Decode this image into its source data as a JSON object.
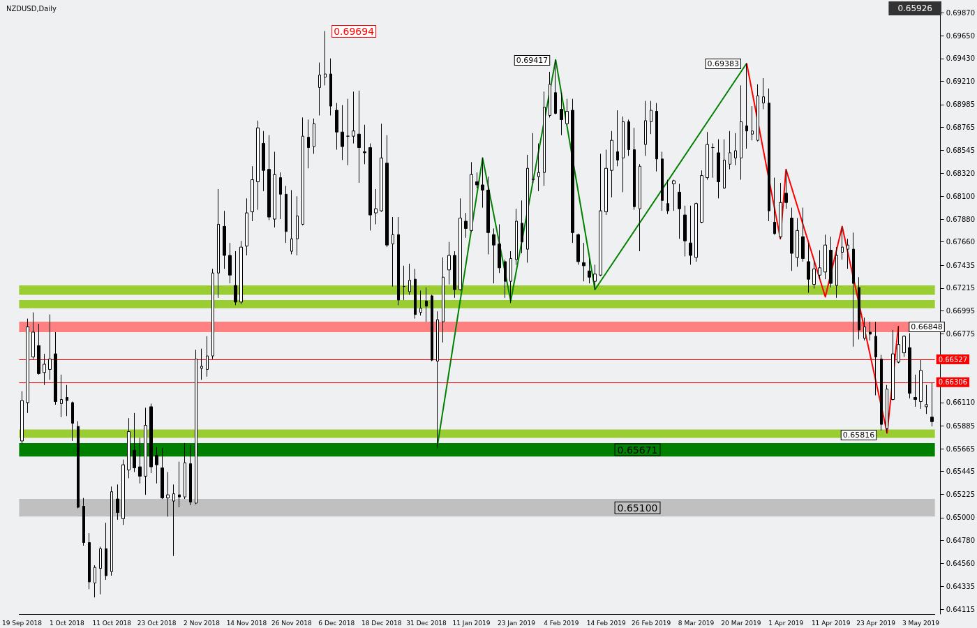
{
  "chart_data": {
    "type": "candlestick",
    "title": "NZDUSD,Daily",
    "categories": [
      "19 Sep 2018",
      null,
      null,
      null,
      null,
      null,
      null,
      null,
      "1 Oct 2018",
      null,
      null,
      null,
      null,
      null,
      null,
      null,
      "11 Oct 2018",
      null,
      null,
      null,
      null,
      null,
      null,
      null,
      "23 Oct 2018",
      null,
      null,
      null,
      null,
      null,
      null,
      null,
      "2 Nov 2018",
      null,
      null,
      null,
      null,
      null,
      null,
      null,
      "14 Nov 2018",
      null,
      null,
      null,
      null,
      null,
      null,
      null,
      "26 Nov 2018",
      null,
      null,
      null,
      null,
      null,
      null,
      null,
      "6 Dec 2018",
      null,
      null,
      null,
      null,
      null,
      null,
      null,
      "18 Dec 2018",
      null,
      null,
      null,
      null,
      null,
      null,
      null,
      "31 Dec 2018",
      null,
      null,
      null,
      null,
      null,
      null,
      null,
      "11 Jan 2019",
      null,
      null,
      null,
      null,
      null,
      null,
      null,
      "23 Jan 2019",
      null,
      null,
      null,
      null,
      null,
      null,
      null,
      "4 Feb 2019",
      null,
      null,
      null,
      null,
      null,
      null,
      null,
      "14 Feb 2019",
      null,
      null,
      null,
      null,
      null,
      null,
      null,
      "26 Feb 2019",
      null,
      null,
      null,
      null,
      null,
      null,
      null,
      "8 Mar 2019",
      null,
      null,
      null,
      null,
      null,
      null,
      null,
      "20 Mar 2019",
      null,
      null,
      null,
      null,
      null,
      null,
      null,
      "1 Apr 2019",
      null,
      null,
      null,
      null,
      null,
      null,
      null,
      "11 Apr 2019",
      null,
      null,
      null,
      null,
      null,
      null,
      null,
      "23 Apr 2019",
      null,
      null,
      null,
      null,
      null,
      null,
      null,
      "3 May 2019",
      null,
      null
    ],
    "ohlc": [
      [
        0.6574,
        0.6622,
        0.6571,
        0.6613
      ],
      [
        0.6611,
        0.6692,
        0.6601,
        0.6684
      ],
      [
        0.6655,
        0.6698,
        0.6653,
        0.6679
      ],
      [
        0.6666,
        0.6687,
        0.6638,
        0.6639
      ],
      [
        0.664,
        0.6658,
        0.6628,
        0.6648
      ],
      [
        0.6643,
        0.6696,
        0.6633,
        0.6653
      ],
      [
        0.6658,
        0.6679,
        0.6609,
        0.6612
      ],
      [
        0.661,
        0.6638,
        0.6597,
        0.6614
      ],
      [
        0.6616,
        0.6628,
        0.6598,
        0.6613
      ],
      [
        0.6611,
        0.6612,
        0.6574,
        0.6591
      ],
      [
        0.6588,
        0.6593,
        0.6509,
        0.651
      ],
      [
        0.6511,
        0.6519,
        0.6473,
        0.6476
      ],
      [
        0.6476,
        0.6485,
        0.6431,
        0.6438
      ],
      [
        0.6437,
        0.6454,
        0.6423,
        0.6452
      ],
      [
        0.6451,
        0.6472,
        0.6426,
        0.647
      ],
      [
        0.647,
        0.6495,
        0.644,
        0.6444
      ],
      [
        0.6448,
        0.653,
        0.6444,
        0.6525
      ],
      [
        0.6518,
        0.6532,
        0.6498,
        0.6505
      ],
      [
        0.6499,
        0.6556,
        0.6493,
        0.6551
      ],
      [
        0.6546,
        0.6596,
        0.6538,
        0.6583
      ],
      [
        0.6565,
        0.6601,
        0.6544,
        0.6548
      ],
      [
        0.6549,
        0.6577,
        0.6533,
        0.654
      ],
      [
        0.654,
        0.6606,
        0.6522,
        0.6589
      ],
      [
        0.6607,
        0.661,
        0.6543,
        0.6549
      ],
      [
        0.656,
        0.6568,
        0.6533,
        0.6551
      ],
      [
        0.6548,
        0.6567,
        0.6518,
        0.6519
      ],
      [
        0.6519,
        0.6544,
        0.6501,
        0.6522
      ],
      [
        0.6516,
        0.6532,
        0.6463,
        0.6523
      ],
      [
        0.6522,
        0.6554,
        0.651,
        0.652
      ],
      [
        0.652,
        0.6572,
        0.6518,
        0.6553
      ],
      [
        0.6552,
        0.657,
        0.6512,
        0.6515
      ],
      [
        0.6514,
        0.6662,
        0.6513,
        0.6653
      ],
      [
        0.6644,
        0.6663,
        0.6633,
        0.6646
      ],
      [
        0.6643,
        0.6675,
        0.6636,
        0.6656
      ],
      [
        0.6656,
        0.674,
        0.6653,
        0.6736
      ],
      [
        0.6736,
        0.6817,
        0.6712,
        0.6783
      ],
      [
        0.6781,
        0.6796,
        0.674,
        0.6753
      ],
      [
        0.6753,
        0.6765,
        0.6726,
        0.6734
      ],
      [
        0.6724,
        0.6757,
        0.6705,
        0.6708
      ],
      [
        0.6708,
        0.6767,
        0.6706,
        0.6761
      ],
      [
        0.6762,
        0.6808,
        0.6753,
        0.6794
      ],
      [
        0.6795,
        0.6839,
        0.6786,
        0.6826
      ],
      [
        0.6824,
        0.6883,
        0.6797,
        0.6876
      ],
      [
        0.6861,
        0.6873,
        0.6815,
        0.6835
      ],
      [
        0.6836,
        0.6869,
        0.6787,
        0.679
      ],
      [
        0.6788,
        0.6853,
        0.678,
        0.6831
      ],
      [
        0.6828,
        0.6833,
        0.6788,
        0.6812
      ],
      [
        0.6812,
        0.682,
        0.6765,
        0.6776
      ],
      [
        0.6757,
        0.6816,
        0.6754,
        0.6769
      ],
      [
        0.6769,
        0.681,
        0.6753,
        0.6791
      ],
      [
        0.6783,
        0.6886,
        0.6782,
        0.6868
      ],
      [
        0.6867,
        0.6884,
        0.6837,
        0.6857
      ],
      [
        0.6858,
        0.6885,
        0.6851,
        0.688
      ],
      [
        0.6915,
        0.6939,
        0.6888,
        0.6927
      ],
      [
        0.6925,
        0.69694,
        0.6917,
        0.6928
      ],
      [
        0.6928,
        0.6943,
        0.6888,
        0.6897
      ],
      [
        0.6893,
        0.69,
        0.6855,
        0.6872
      ],
      [
        0.6872,
        0.6898,
        0.6845,
        0.6858
      ],
      [
        0.6868,
        0.6904,
        0.684,
        0.6868
      ],
      [
        0.6868,
        0.6911,
        0.6861,
        0.6873
      ],
      [
        0.687,
        0.6912,
        0.6823,
        0.6857
      ],
      [
        0.6853,
        0.6879,
        0.6841,
        0.6852
      ],
      [
        0.6857,
        0.6861,
        0.6777,
        0.6792
      ],
      [
        0.6794,
        0.6817,
        0.6783,
        0.6798
      ],
      [
        0.6796,
        0.688,
        0.6795,
        0.6847
      ],
      [
        0.6842,
        0.6869,
        0.6761,
        0.6763
      ],
      [
        0.6764,
        0.679,
        0.6723,
        0.6773
      ],
      [
        0.6773,
        0.679,
        0.6705,
        0.671
      ],
      [
        0.6723,
        0.6743,
        0.671,
        0.6723
      ],
      [
        0.6718,
        0.6745,
        0.6715,
        0.6729
      ],
      [
        0.673,
        0.674,
        0.6692,
        0.6696
      ],
      [
        0.6698,
        0.6719,
        0.6695,
        0.6702
      ],
      [
        0.6709,
        0.6722,
        0.6689,
        0.6704
      ],
      [
        0.6714,
        0.6715,
        0.6651,
        0.6652
      ],
      [
        0.6651,
        0.6699,
        0.6567,
        0.6691
      ],
      [
        0.6689,
        0.6751,
        0.6669,
        0.6732
      ],
      [
        0.6739,
        0.6766,
        0.6725,
        0.6753
      ],
      [
        0.6753,
        0.6757,
        0.6712,
        0.672
      ],
      [
        0.672,
        0.6808,
        0.6719,
        0.6789
      ],
      [
        0.6786,
        0.6794,
        0.677,
        0.6779
      ],
      [
        0.6777,
        0.6843,
        0.6776,
        0.6831
      ],
      [
        0.6824,
        0.6833,
        0.6818,
        0.6821
      ],
      [
        0.6821,
        0.6847,
        0.6799,
        0.6816
      ],
      [
        0.6816,
        0.6829,
        0.6754,
        0.6775
      ],
      [
        0.6773,
        0.6779,
        0.6726,
        0.6763
      ],
      [
        0.6764,
        0.6783,
        0.6736,
        0.6741
      ],
      [
        0.6747,
        0.6749,
        0.6712,
        0.6728
      ],
      [
        0.6728,
        0.6757,
        0.6707,
        0.675
      ],
      [
        0.6749,
        0.6798,
        0.6744,
        0.6786
      ],
      [
        0.6784,
        0.6806,
        0.6755,
        0.6766
      ],
      [
        0.6759,
        0.685,
        0.6746,
        0.6837
      ],
      [
        0.6826,
        0.6871,
        0.6823,
        0.6827
      ],
      [
        0.6829,
        0.6861,
        0.6815,
        0.6833
      ],
      [
        0.6833,
        0.6911,
        0.682,
        0.6896
      ],
      [
        0.6888,
        0.693,
        0.6886,
        0.6918
      ],
      [
        0.691,
        0.69417,
        0.6889,
        0.689
      ],
      [
        0.6894,
        0.691,
        0.6869,
        0.6884
      ],
      [
        0.688,
        0.6904,
        0.6879,
        0.6892
      ],
      [
        0.6893,
        0.6904,
        0.6765,
        0.6775
      ],
      [
        0.6773,
        0.6774,
        0.6744,
        0.6747
      ],
      [
        0.6746,
        0.6765,
        0.6728,
        0.6743
      ],
      [
        0.6738,
        0.675,
        0.6726,
        0.6732
      ],
      [
        0.6728,
        0.6744,
        0.672,
        0.6735
      ],
      [
        0.6734,
        0.6851,
        0.6733,
        0.6796
      ],
      [
        0.6795,
        0.6855,
        0.6792,
        0.6837
      ],
      [
        0.6835,
        0.6873,
        0.6809,
        0.6864
      ],
      [
        0.6853,
        0.6893,
        0.6839,
        0.6845
      ],
      [
        0.6847,
        0.6887,
        0.6814,
        0.6882
      ],
      [
        0.6882,
        0.6884,
        0.6849,
        0.6855
      ],
      [
        0.6855,
        0.6876,
        0.6797,
        0.68
      ],
      [
        0.6798,
        0.6841,
        0.6757,
        0.6839
      ],
      [
        0.686,
        0.6902,
        0.6849,
        0.6883
      ],
      [
        0.6882,
        0.6902,
        0.687,
        0.6893
      ],
      [
        0.6892,
        0.69,
        0.6834,
        0.6846
      ],
      [
        0.6846,
        0.6853,
        0.6796,
        0.6806
      ],
      [
        0.6803,
        0.6826,
        0.6793,
        0.6796
      ],
      [
        0.6822,
        0.6826,
        0.6796,
        0.6825
      ],
      [
        0.6814,
        0.6822,
        0.6769,
        0.6798
      ],
      [
        0.6792,
        0.6801,
        0.6752,
        0.6767
      ],
      [
        0.6765,
        0.6801,
        0.6744,
        0.6753
      ],
      [
        0.6751,
        0.6804,
        0.6747,
        0.6803
      ],
      [
        0.6785,
        0.6835,
        0.6784,
        0.683
      ],
      [
        0.6828,
        0.6872,
        0.6826,
        0.686
      ],
      [
        0.6857,
        0.6861,
        0.6828,
        0.6857
      ],
      [
        0.6852,
        0.6865,
        0.6808,
        0.6824
      ],
      [
        0.6818,
        0.6865,
        0.6817,
        0.6845
      ],
      [
        0.6841,
        0.6873,
        0.6836,
        0.6852
      ],
      [
        0.6847,
        0.6871,
        0.684,
        0.6854
      ],
      [
        0.6847,
        0.6917,
        0.6826,
        0.6882
      ],
      [
        0.6878,
        0.69383,
        0.6856,
        0.6873
      ],
      [
        0.687,
        0.6897,
        0.6864,
        0.6873
      ],
      [
        0.6864,
        0.6918,
        0.6863,
        0.6907
      ],
      [
        0.69,
        0.6924,
        0.6894,
        0.6906
      ],
      [
        0.69,
        0.6914,
        0.6786,
        0.6796
      ],
      [
        0.6785,
        0.6828,
        0.6773,
        0.6774
      ],
      [
        0.6771,
        0.6823,
        0.6769,
        0.6804
      ],
      [
        0.6813,
        0.6836,
        0.6798,
        0.6804
      ],
      [
        0.6789,
        0.6799,
        0.6738,
        0.6755
      ],
      [
        0.6751,
        0.6789,
        0.6742,
        0.6777
      ],
      [
        0.6771,
        0.6799,
        0.6747,
        0.675
      ],
      [
        0.6747,
        0.6765,
        0.6717,
        0.673
      ],
      [
        0.6725,
        0.6748,
        0.6721,
        0.674
      ],
      [
        0.6734,
        0.6758,
        0.673,
        0.6741
      ],
      [
        0.6737,
        0.6773,
        0.673,
        0.6763
      ],
      [
        0.6758,
        0.6771,
        0.6722,
        0.6726
      ],
      [
        0.6724,
        0.6761,
        0.6712,
        0.6753
      ],
      [
        0.6756,
        0.6781,
        0.6749,
        0.6761
      ],
      [
        0.6759,
        0.6769,
        0.674,
        0.6763
      ],
      [
        0.6759,
        0.6775,
        0.6665,
        0.6726
      ],
      [
        0.6722,
        0.6732,
        0.6672,
        0.6681
      ],
      [
        0.6673,
        0.6693,
        0.6671,
        0.6684
      ],
      [
        0.6679,
        0.6689,
        0.6671,
        0.6677
      ],
      [
        0.6675,
        0.6689,
        0.6618,
        0.6655
      ],
      [
        0.6653,
        0.6657,
        0.6584,
        0.659
      ],
      [
        0.6586,
        0.6628,
        0.65816,
        0.6624
      ],
      [
        0.6614,
        0.6681,
        0.6613,
        0.6658
      ],
      [
        0.665,
        0.66848,
        0.6649,
        0.6667
      ],
      [
        0.6659,
        0.6676,
        0.6655,
        0.6675
      ],
      [
        0.6664,
        0.6678,
        0.6615,
        0.662
      ],
      [
        0.6616,
        0.6638,
        0.6607,
        0.6614
      ],
      [
        0.6612,
        0.6652,
        0.6605,
        0.6642
      ],
      [
        0.6607,
        0.6628,
        0.66,
        0.6609
      ],
      [
        0.6597,
        0.663,
        0.6588,
        0.65926
      ]
    ],
    "series": [
      {
        "type": "line",
        "color": "#008000",
        "values": [
          null,
          null,
          null,
          null,
          null,
          null,
          null,
          null,
          null,
          null,
          null,
          null,
          null,
          null,
          null,
          null,
          null,
          null,
          null,
          null,
          null,
          null,
          null,
          null,
          null,
          null,
          null,
          null,
          null,
          null,
          null,
          null,
          null,
          null,
          null,
          null,
          null,
          null,
          null,
          null,
          null,
          null,
          null,
          null,
          null,
          null,
          null,
          null,
          null,
          null,
          null,
          null,
          null,
          null,
          null,
          null,
          null,
          null,
          null,
          null,
          null,
          null,
          null,
          null,
          null,
          null,
          null,
          null,
          null,
          null,
          null,
          null,
          null,
          null,
          0.6571,
          null,
          null,
          null,
          null,
          null,
          null,
          null,
          0.6847,
          null,
          null,
          null,
          null,
          0.6709,
          null,
          null,
          null,
          null,
          null,
          null,
          null,
          0.69417,
          null,
          null,
          null,
          null,
          null,
          null,
          0.672,
          null,
          null,
          null,
          null,
          null,
          null,
          null,
          null,
          null,
          null,
          null,
          null,
          null,
          null,
          null,
          null,
          null,
          null,
          null,
          null,
          null,
          null,
          null,
          null,
          null,
          null,
          0.69383,
          null,
          null,
          null,
          null,
          null,
          null,
          null,
          null,
          null,
          null,
          null,
          null,
          null,
          null,
          null,
          null,
          null,
          null,
          null,
          null,
          null,
          null,
          null,
          null,
          null,
          null,
          null,
          null,
          null,
          null,
          null,
          null,
          null
        ]
      },
      {
        "type": "line",
        "color": "#ff0000",
        "values": [
          null,
          null,
          null,
          null,
          null,
          null,
          null,
          null,
          null,
          null,
          null,
          null,
          null,
          null,
          null,
          null,
          null,
          null,
          null,
          null,
          null,
          null,
          null,
          null,
          null,
          null,
          null,
          null,
          null,
          null,
          null,
          null,
          null,
          null,
          null,
          null,
          null,
          null,
          null,
          null,
          null,
          null,
          null,
          null,
          null,
          null,
          null,
          null,
          null,
          null,
          null,
          null,
          null,
          null,
          null,
          null,
          null,
          null,
          null,
          null,
          null,
          null,
          null,
          null,
          null,
          null,
          null,
          null,
          null,
          null,
          null,
          null,
          null,
          null,
          null,
          null,
          null,
          null,
          null,
          null,
          null,
          null,
          null,
          null,
          null,
          null,
          null,
          null,
          null,
          null,
          null,
          null,
          null,
          null,
          null,
          null,
          null,
          null,
          null,
          null,
          null,
          null,
          null,
          null,
          null,
          null,
          null,
          null,
          null,
          null,
          null,
          null,
          null,
          null,
          null,
          null,
          null,
          null,
          null,
          null,
          null,
          null,
          null,
          null,
          null,
          null,
          null,
          null,
          null,
          0.69383,
          null,
          null,
          null,
          null,
          null,
          0.6769,
          0.6836,
          null,
          null,
          null,
          null,
          null,
          null,
          0.6713,
          null,
          null,
          0.6781,
          null,
          null,
          null,
          null,
          null,
          null,
          null,
          0.65816,
          null,
          0.66848,
          null,
          null,
          null,
          null,
          null,
          null
        ]
      }
    ],
    "ylim": [
      0.6407,
      0.6994
    ],
    "yticks": [
      0.64115,
      0.64335,
      {
        "value": 0.6456,
        "label": "0.64560"
      },
      {
        "value": 0.6478,
        "label": "0.64780"
      },
      {
        "value": 0.65,
        "label": "0.65000"
      },
      0.65225,
      0.65445,
      0.65665,
      0.65885,
      {
        "value": 0.6611,
        "label": "0.66110"
      },
      {
        "value": 0.6633,
        "label": null
      },
      {
        "value": 0.6655,
        "label": null
      },
      0.66775,
      0.66995,
      0.67215,
      0.67435,
      {
        "value": 0.6766,
        "label": "0.67660"
      },
      {
        "value": 0.6788,
        "label": "0.67880"
      },
      {
        "value": 0.681,
        "label": "0.68100"
      },
      {
        "value": 0.6832,
        "label": "0.68320"
      },
      0.68545,
      0.68765,
      0.68985,
      {
        "value": 0.6921,
        "label": "0.69210"
      },
      {
        "value": 0.6943,
        "label": "0.69430"
      },
      {
        "value": 0.6965,
        "label": "0.69650"
      },
      {
        "value": 0.6987,
        "label": "0.69870"
      }
    ],
    "ref_lines": [
      {
        "axis": "y",
        "value": 0.66527,
        "label": "0.66527",
        "color": "#ff0000"
      },
      {
        "axis": "y",
        "value": 0.66306,
        "label": "0.66306",
        "color": "#ff0000"
      }
    ],
    "bands": [
      {
        "axis": "y",
        "from": 0.6559,
        "to": 0.6572,
        "label": "0.65671",
        "color": "#008000"
      },
      {
        "axis": "y",
        "from": 0.6501,
        "to": 0.6518,
        "label": "0.65100",
        "color": "#c0c0c0"
      },
      {
        "axis": "y",
        "from": 0.6577,
        "to": 0.6585,
        "color": "#9acd32"
      },
      {
        "axis": "y",
        "from": 0.6715,
        "to": 0.6724,
        "color": "#9acd32"
      },
      {
        "axis": "y",
        "from": 0.6702,
        "to": 0.671,
        "color": "#9acd32"
      },
      {
        "axis": "y",
        "from": 0.6679,
        "to": 0.6689,
        "color": "#ff8080"
      }
    ],
    "annotations": [
      "0.65926",
      "0.69694",
      "0.69417",
      "0.69383",
      "0.66848",
      "0.65816"
    ]
  }
}
